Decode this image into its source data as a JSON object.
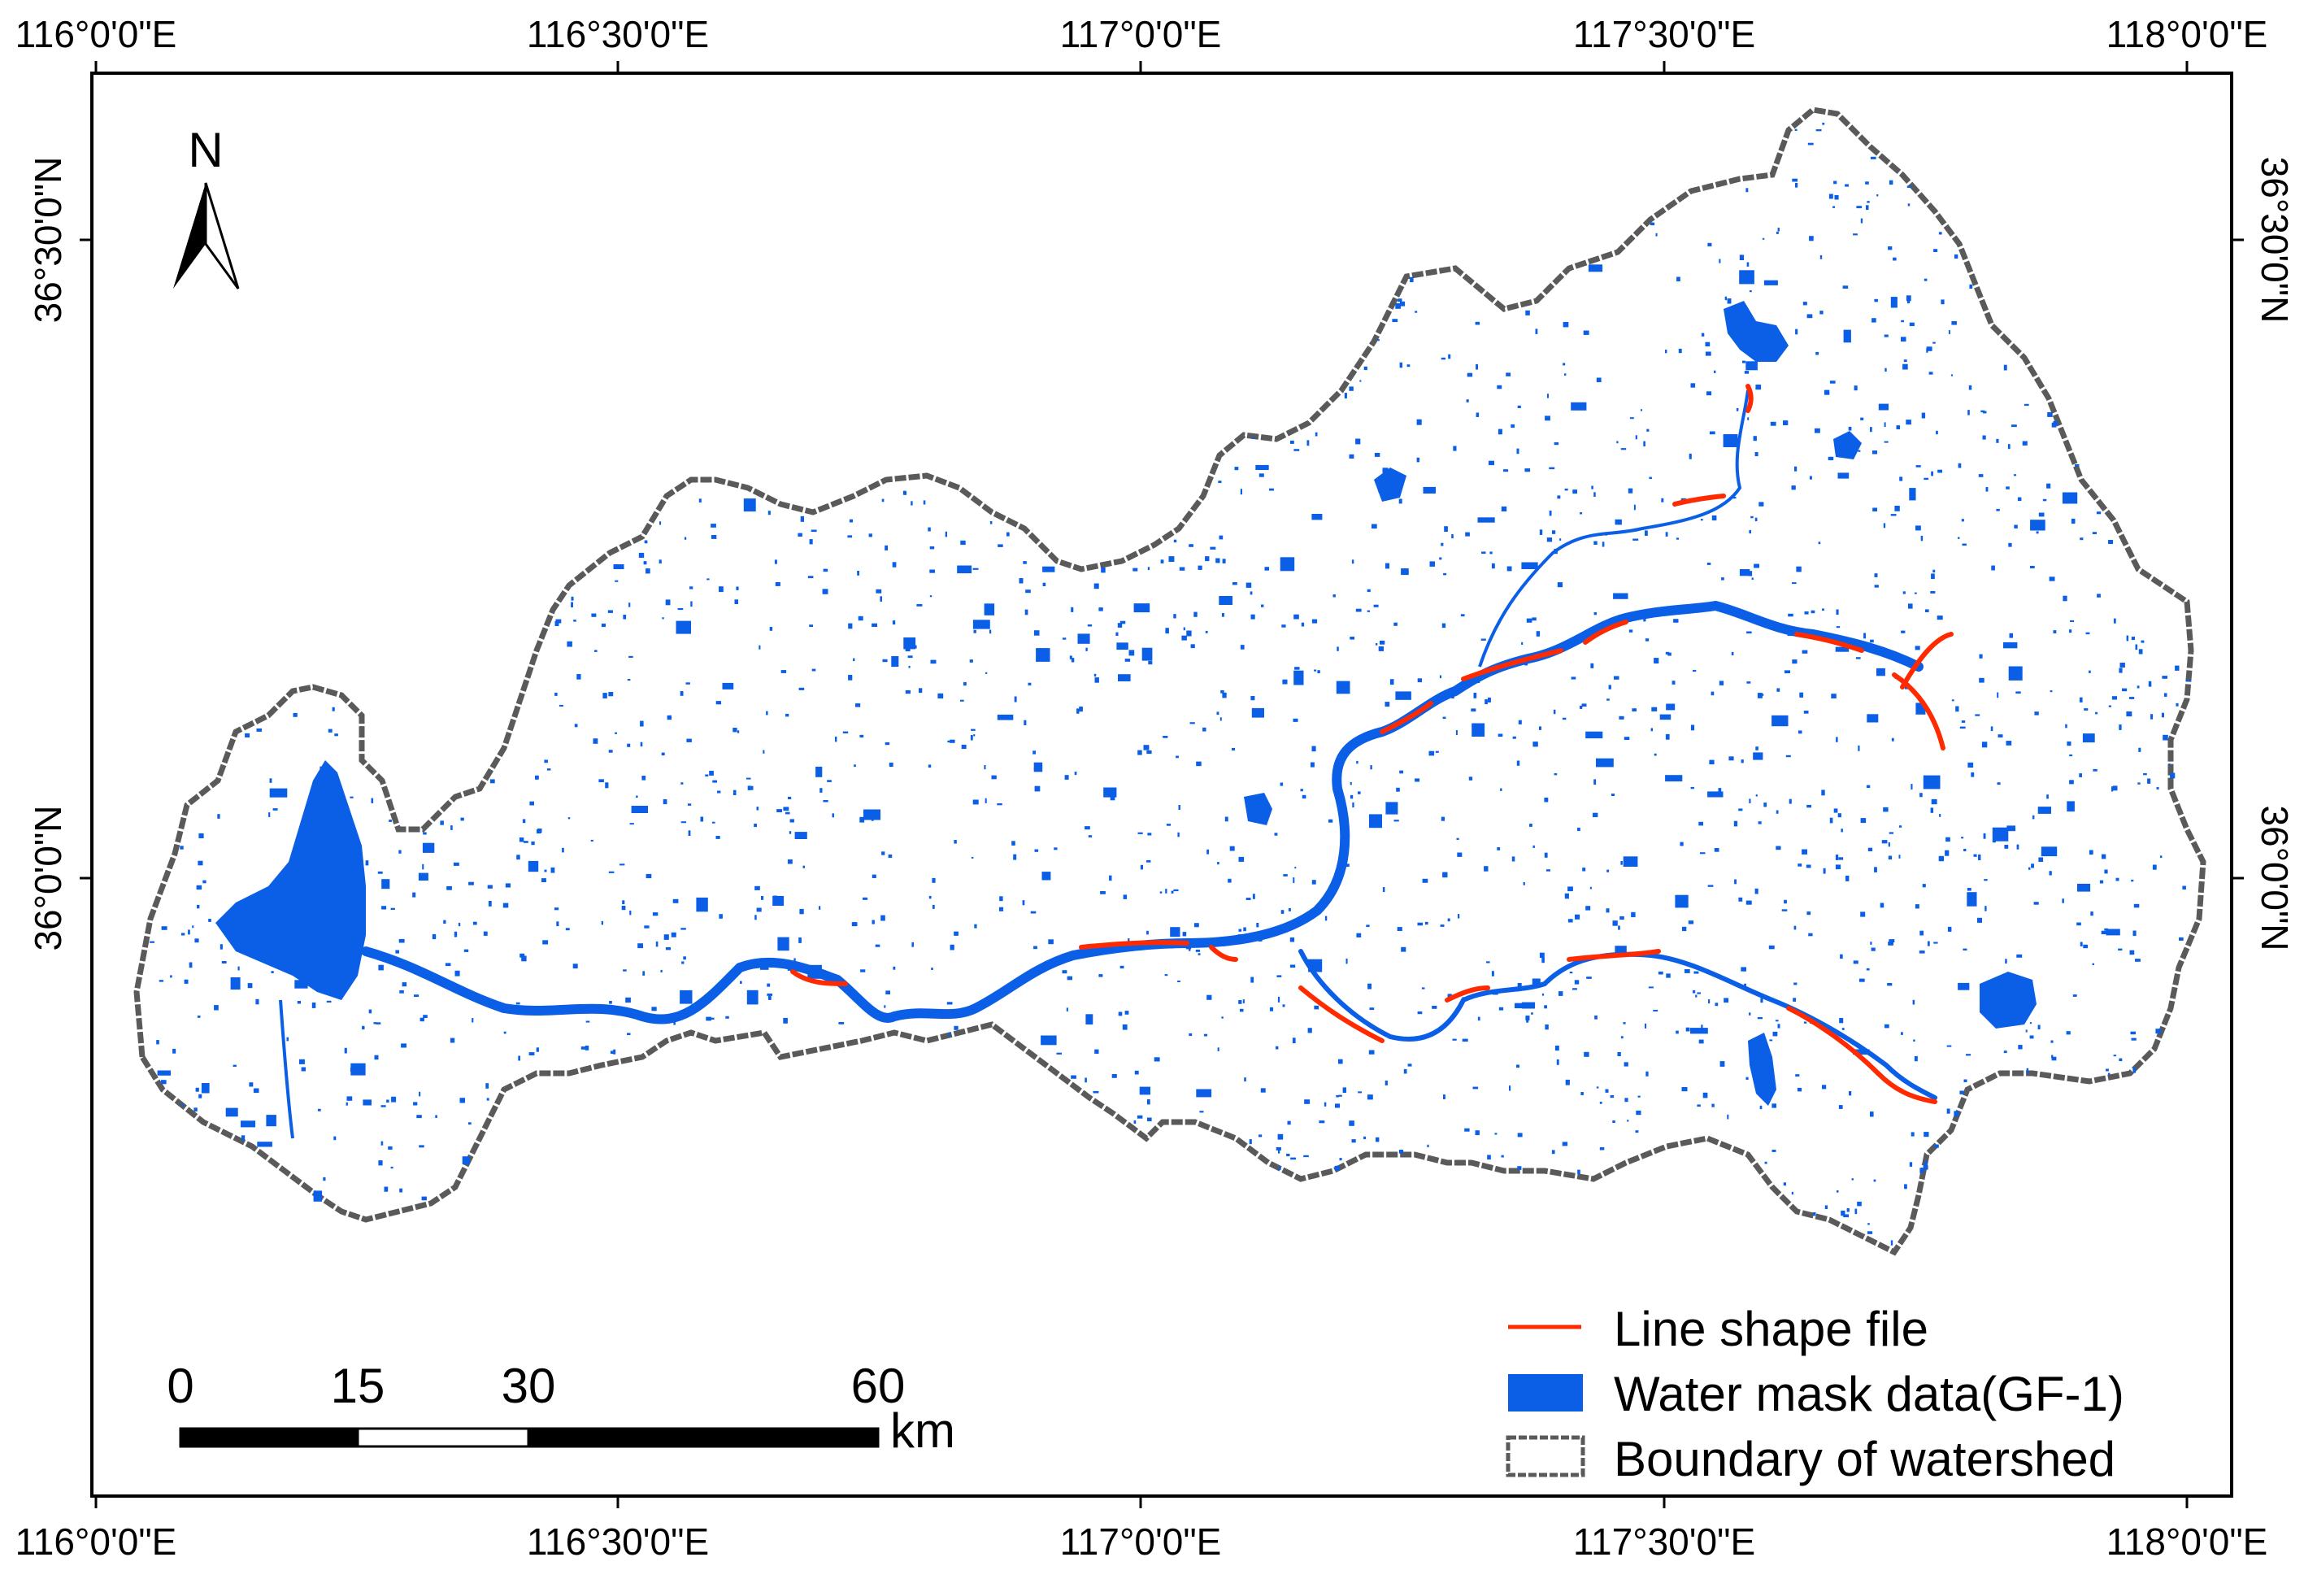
{
  "map": {
    "north_arrow_label": "N",
    "colors": {
      "water": "#0a5fe6",
      "line_shape": "#ff2a00",
      "boundary": "#555555",
      "frame": "#000000"
    }
  },
  "axes": {
    "top_ticks": [
      "116°0'0\"E",
      "116°30'0\"E",
      "117°0'0\"E",
      "117°30'0\"E",
      "118°0'0\"E"
    ],
    "bottom_ticks": [
      "116°0'0\"E",
      "116°30'0\"E",
      "117°0'0\"E",
      "117°30'0\"E",
      "118°0'0\"E"
    ],
    "left_ticks": [
      "36°30'0\"N",
      "36°0'0\"N"
    ],
    "right_ticks": [
      "36°30'0\"N",
      "36°0'0\"N"
    ]
  },
  "scale_bar": {
    "labels": [
      "0",
      "15",
      "30",
      "60"
    ],
    "unit": "km"
  },
  "legend": {
    "items": [
      {
        "label": "Line shape file",
        "symbol": "line",
        "color": "#ff2a00"
      },
      {
        "label": "Water mask data(GF-1)",
        "symbol": "fill",
        "color": "#0a5fe6"
      },
      {
        "label": "Boundary of watershed",
        "symbol": "boundary",
        "color": "#555555"
      }
    ]
  }
}
